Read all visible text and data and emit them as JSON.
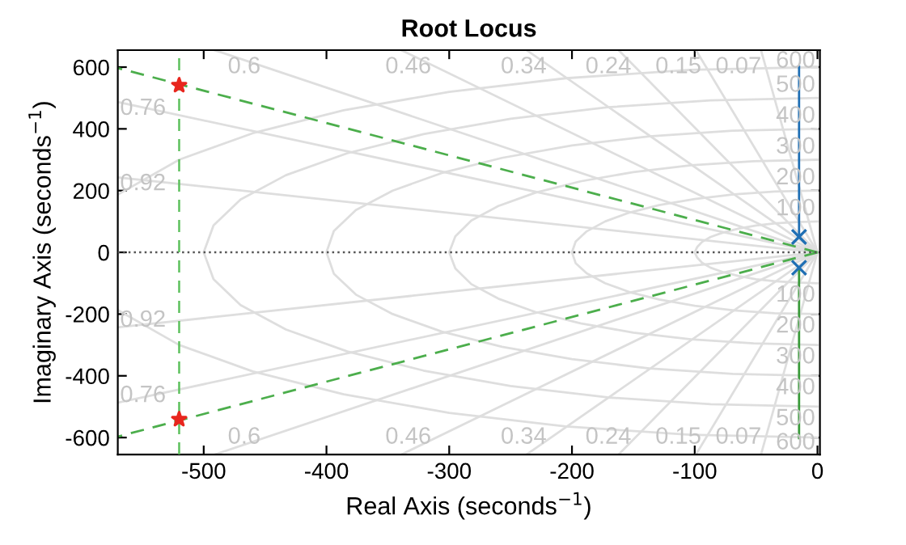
{
  "chart_data": {
    "type": "line",
    "title": "Root Locus",
    "xlabel": "Real Axis (seconds$^{−1}$)",
    "ylabel": "Imaginary Axis (seconds$^{−1}$)",
    "xlim": [
      -570,
      2
    ],
    "ylim": [
      -655,
      655
    ],
    "xticks": [
      -500,
      -400,
      -300,
      -200,
      -100,
      0
    ],
    "yticks": [
      -600,
      -400,
      -200,
      0,
      200,
      400,
      600
    ],
    "grid": false,
    "legend": false,
    "ref_lines": [
      {
        "axis": "y",
        "value": 0,
        "color": "#555555",
        "line_style": "dotted"
      },
      {
        "axis": "x",
        "value": -520,
        "color": "#5cc05c",
        "line_style": "dashed"
      }
    ],
    "series": [
      {
        "color": "#dedede",
        "x": [
          -46,
          0,
          -46
        ],
        "values": [
          655,
          0,
          -655
        ]
      },
      {
        "color": "#dedede",
        "x": [
          -99,
          0,
          -99
        ],
        "values": [
          655,
          0,
          -655
        ]
      },
      {
        "color": "#dedede",
        "x": [
          -162,
          0,
          -162
        ],
        "values": [
          655,
          0,
          -655
        ]
      },
      {
        "color": "#dedede",
        "x": [
          -237,
          0,
          -237
        ],
        "values": [
          655,
          0,
          -655
        ]
      },
      {
        "color": "#dedede",
        "x": [
          -339,
          0,
          -339
        ],
        "values": [
          655,
          0,
          -655
        ]
      },
      {
        "color": "#dedede",
        "x": [
          -491,
          0,
          -491
        ],
        "values": [
          655,
          0,
          -655
        ]
      },
      {
        "color": "#dedede",
        "x": [
          -570,
          0,
          -570
        ],
        "values": [
          487,
          0,
          -487
        ]
      },
      {
        "color": "#dedede",
        "x": [
          -570,
          0,
          -570
        ],
        "values": [
          243,
          0,
          -243
        ]
      },
      {
        "color": "#dedede",
        "x": [
          0,
          -17,
          -34,
          -50,
          -64,
          -77,
          -87,
          -94,
          -98,
          -100,
          -98,
          -94,
          -87,
          -77,
          -64,
          -50,
          -34,
          -17,
          0
        ],
        "values": [
          100,
          98,
          94,
          87,
          77,
          64,
          50,
          34,
          17,
          0,
          -17,
          -34,
          -50,
          -64,
          -77,
          -87,
          -94,
          -98,
          -100
        ]
      },
      {
        "color": "#dedede",
        "x": [
          0,
          -35,
          -68,
          -100,
          -129,
          -153,
          -173,
          -188,
          -197,
          -200,
          -197,
          -188,
          -173,
          -153,
          -129,
          -100,
          -68,
          -35,
          0
        ],
        "values": [
          200,
          197,
          188,
          173,
          153,
          129,
          100,
          68,
          35,
          0,
          -35,
          -68,
          -100,
          -129,
          -153,
          -173,
          -188,
          -197,
          -200
        ]
      },
      {
        "color": "#dedede",
        "x": [
          0,
          -52,
          -103,
          -150,
          -193,
          -230,
          -260,
          -282,
          -295,
          -300,
          -295,
          -282,
          -260,
          -230,
          -193,
          -150,
          -103,
          -52,
          0
        ],
        "values": [
          300,
          295,
          282,
          260,
          230,
          193,
          150,
          103,
          52,
          0,
          -52,
          -103,
          -150,
          -193,
          -230,
          -260,
          -282,
          -295,
          -300
        ]
      },
      {
        "color": "#dedede",
        "x": [
          0,
          -69,
          -137,
          -200,
          -257,
          -306,
          -346,
          -376,
          -394,
          -400,
          -394,
          -376,
          -346,
          -306,
          -257,
          -200,
          -137,
          -69,
          0
        ],
        "values": [
          400,
          394,
          376,
          346,
          306,
          257,
          200,
          137,
          69,
          0,
          -69,
          -137,
          -200,
          -257,
          -306,
          -346,
          -376,
          -394,
          -400
        ]
      },
      {
        "color": "#dedede",
        "x": [
          0,
          -87,
          -171,
          -250,
          -321,
          -383,
          -433,
          -470,
          -492,
          -500,
          -492,
          -470,
          -433,
          -383,
          -321,
          -250,
          -171,
          -87,
          0
        ],
        "values": [
          500,
          492,
          470,
          433,
          383,
          321,
          250,
          171,
          87,
          0,
          -87,
          -171,
          -250,
          -321,
          -383,
          -433,
          -470,
          -492,
          -500
        ]
      },
      {
        "color": "#dedede",
        "x": [
          0,
          -104,
          -205,
          -300,
          -386,
          -460,
          -520,
          -570
        ],
        "values": [
          600,
          591,
          564,
          520,
          460,
          386,
          300,
          187
        ]
      },
      {
        "color": "#dedede",
        "x": [
          0,
          -104,
          -205,
          -300,
          -386,
          -460,
          -520,
          -570
        ],
        "values": [
          -600,
          -591,
          -564,
          -520,
          -460,
          -386,
          -300,
          -187
        ]
      },
      {
        "color": "#4cae4c",
        "line_style": "dashed",
        "x": [
          0,
          -570
        ],
        "values": [
          0,
          597
        ]
      },
      {
        "color": "#4cae4c",
        "line_style": "dashed",
        "x": [
          0,
          -570
        ],
        "values": [
          0,
          -597
        ]
      },
      {
        "color": "#1f6fb4",
        "x": [
          -15,
          -15
        ],
        "values": [
          50,
          602
        ]
      },
      {
        "color": "#3a9a3a",
        "x": [
          -15,
          -15
        ],
        "values": [
          -50,
          -602
        ]
      },
      {
        "type": "scatter",
        "color": "#1f6fb4",
        "marker": "cross",
        "x": [
          -15,
          -15
        ],
        "values": [
          50,
          -50
        ]
      },
      {
        "type": "scatter",
        "color": "#e8261e",
        "marker": "star",
        "x": [
          -520,
          -520
        ],
        "values": [
          541,
          -541
        ]
      }
    ],
    "annotations": [
      {
        "text": "0.6",
        "x": -450,
        "y": 600
      },
      {
        "text": "0.46",
        "x": -311,
        "y": 600
      },
      {
        "text": "0.34",
        "x": -217,
        "y": 600
      },
      {
        "text": "0.24",
        "x": -148,
        "y": 600
      },
      {
        "text": "0.15",
        "x": -91,
        "y": 600
      },
      {
        "text": "0.07",
        "x": -42,
        "y": 600
      },
      {
        "text": "0.76",
        "x": -570,
        "y": 487
      },
      {
        "text": "0.92",
        "x": -570,
        "y": 243
      },
      {
        "text": "0.92",
        "x": -570,
        "y": -243
      },
      {
        "text": "0.76",
        "x": -570,
        "y": -487
      },
      {
        "text": "0.6",
        "x": -450,
        "y": -600
      },
      {
        "text": "0.46",
        "x": -311,
        "y": -600
      },
      {
        "text": "0.34",
        "x": -217,
        "y": -600
      },
      {
        "text": "0.24",
        "x": -148,
        "y": -600
      },
      {
        "text": "0.15",
        "x": -91,
        "y": -600
      },
      {
        "text": "0.07",
        "x": -42,
        "y": -600
      },
      {
        "text": "600",
        "x": 0,
        "y": 600
      },
      {
        "text": "500",
        "x": 0,
        "y": 500
      },
      {
        "text": "400",
        "x": 0,
        "y": 400
      },
      {
        "text": "300",
        "x": 0,
        "y": 300
      },
      {
        "text": "200",
        "x": 0,
        "y": 200
      },
      {
        "text": "100",
        "x": 0,
        "y": 100
      },
      {
        "text": "100",
        "x": 0,
        "y": -100
      },
      {
        "text": "200",
        "x": 0,
        "y": -200
      },
      {
        "text": "300",
        "x": 0,
        "y": -300
      },
      {
        "text": "400",
        "x": 0,
        "y": -400
      },
      {
        "text": "500",
        "x": 0,
        "y": -500
      },
      {
        "text": "600",
        "x": 0,
        "y": -600
      }
    ]
  }
}
